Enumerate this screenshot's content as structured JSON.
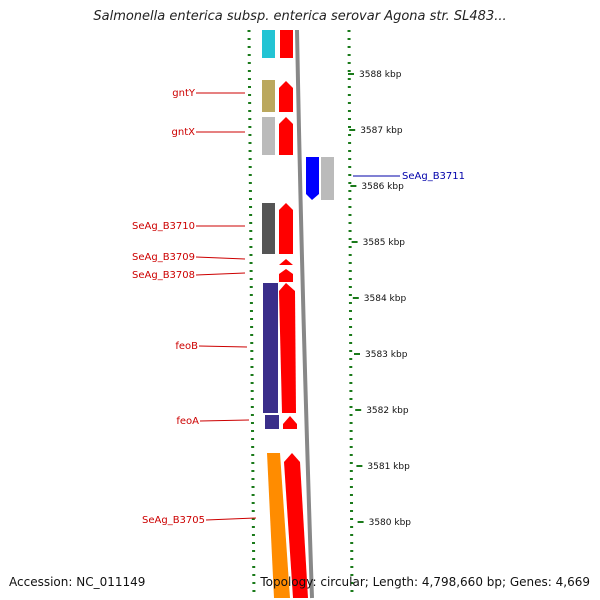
{
  "title": "Salmonella enterica subsp. enterica serovar Agona str. SL483...",
  "footer": {
    "accession": "Accession: NC_011149",
    "stats": "Topology: circular; Length: 4,798,660 bp; Genes: 4,669"
  },
  "scale_ticks": [
    {
      "label": "3588 kbp",
      "kbp": 3588
    },
    {
      "label": "3587 kbp",
      "kbp": 3587
    },
    {
      "label": "3586 kbp",
      "kbp": 3586
    },
    {
      "label": "3585 kbp",
      "kbp": 3585
    },
    {
      "label": "3584 kbp",
      "kbp": 3584
    },
    {
      "label": "3583 kbp",
      "kbp": 3583
    },
    {
      "label": "3582 kbp",
      "kbp": 3582
    },
    {
      "label": "3581 kbp",
      "kbp": 3581
    },
    {
      "label": "3580 kbp",
      "kbp": 3580
    }
  ],
  "gene_labels": [
    {
      "text": "gntY",
      "color": "#cc0000"
    },
    {
      "text": "gntX",
      "color": "#cc0000"
    },
    {
      "text": "SeAg_B3711",
      "color": "#0000aa"
    },
    {
      "text": "SeAg_B3710",
      "color": "#cc0000"
    },
    {
      "text": "SeAg_B3709",
      "color": "#cc0000"
    },
    {
      "text": "SeAg_B3708",
      "color": "#cc0000"
    },
    {
      "text": "feoB",
      "color": "#cc0000"
    },
    {
      "text": "feoA",
      "color": "#cc0000"
    },
    {
      "text": "SeAg_B3705",
      "color": "#cc0000"
    }
  ],
  "colors": {
    "forward_cds": "#ff0000",
    "reverse_cds": "#0000ff",
    "backbone": "#888888",
    "gc_ring": "#1a7a1a",
    "label_forward": "#cc0000",
    "label_reverse": "#0000aa"
  }
}
